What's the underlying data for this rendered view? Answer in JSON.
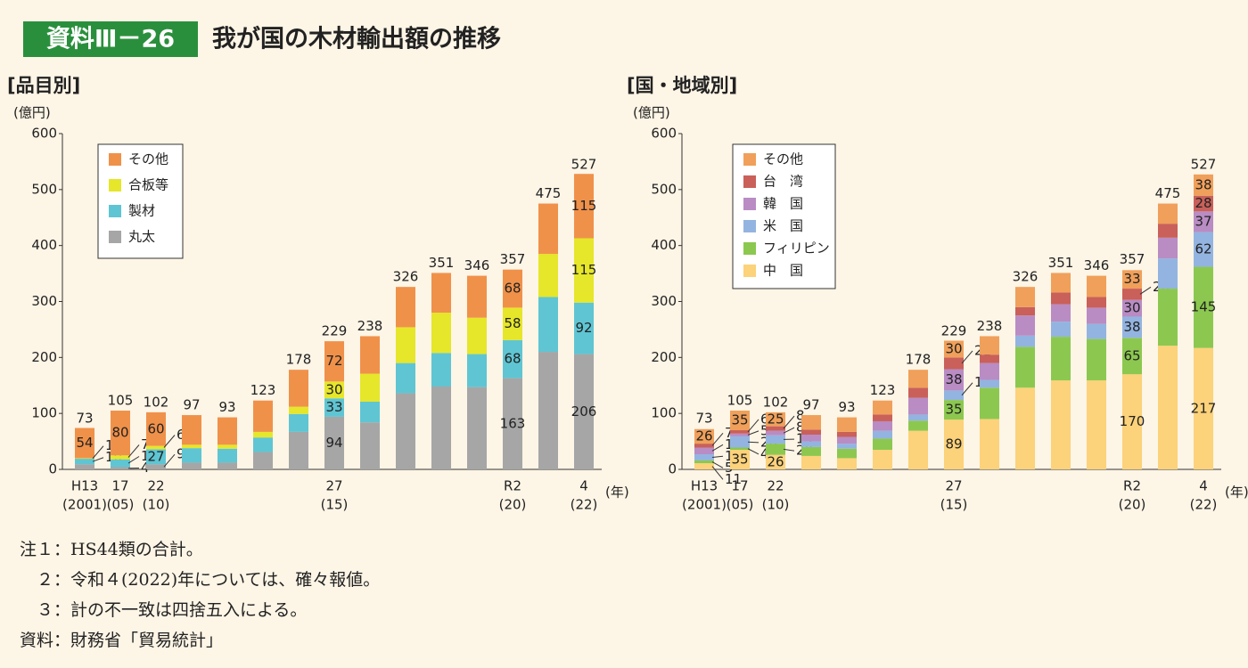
{
  "header": {
    "badge": "資料Ⅲ－26",
    "title": "我が国の木材輸出額の推移"
  },
  "chart_data": [
    {
      "type": "bar",
      "stacked": true,
      "title": "[品目別]",
      "y_label": "(億円)",
      "x_label": "(年)",
      "categories": [
        "H13",
        "17",
        "22",
        null,
        null,
        null,
        null,
        "27",
        null,
        null,
        null,
        null,
        "R2",
        null,
        "4"
      ],
      "category_sublabels": [
        "(2001)",
        "(05)",
        "(10)",
        null,
        null,
        null,
        null,
        "(15)",
        null,
        null,
        null,
        null,
        "(20)",
        null,
        "(22)"
      ],
      "ylim": [
        0,
        600
      ],
      "yticks": [
        0,
        100,
        200,
        300,
        400,
        500,
        600
      ],
      "legend": "upper left",
      "series": [
        {
          "name": "丸太",
          "color": "#a6a6a6",
          "values": [
            9,
            4,
            9,
            12,
            12,
            31,
            67,
            94,
            84,
            136,
            148,
            147,
            163,
            210,
            206
          ],
          "value_labels": [
            null,
            4,
            9,
            null,
            null,
            null,
            null,
            94,
            null,
            null,
            null,
            null,
            163,
            null,
            206
          ]
        },
        {
          "name": "製材",
          "color": "#5fc5d3",
          "values": [
            10,
            14,
            27,
            26,
            25,
            26,
            32,
            33,
            37,
            54,
            60,
            59,
            68,
            98,
            92
          ],
          "value_labels": [
            10,
            14,
            27,
            null,
            null,
            null,
            null,
            33,
            null,
            null,
            null,
            null,
            68,
            null,
            92
          ]
        },
        {
          "name": "合板等",
          "color": "#e6e62a",
          "values": [
            1,
            7,
            6,
            6,
            7,
            10,
            13,
            30,
            50,
            64,
            72,
            65,
            58,
            77,
            115
          ],
          "value_labels": [
            1,
            7,
            6,
            null,
            null,
            null,
            null,
            30,
            null,
            null,
            null,
            null,
            58,
            null,
            115
          ]
        },
        {
          "name": "その他",
          "color": "#f0914a",
          "values": [
            54,
            80,
            60,
            53,
            49,
            56,
            66,
            72,
            67,
            72,
            71,
            75,
            68,
            90,
            115
          ],
          "value_labels": [
            54,
            80,
            60,
            null,
            null,
            null,
            null,
            72,
            null,
            null,
            null,
            null,
            68,
            null,
            115
          ]
        }
      ],
      "totals": [
        73,
        105,
        102,
        97,
        93,
        123,
        178,
        229,
        238,
        326,
        351,
        346,
        357,
        475,
        527
      ]
    },
    {
      "type": "bar",
      "stacked": true,
      "title": "[国・地域別]",
      "y_label": "(億円)",
      "x_label": "(年)",
      "categories": [
        "H13",
        "17",
        "22",
        null,
        null,
        null,
        null,
        "27",
        null,
        null,
        null,
        null,
        "R2",
        null,
        "4"
      ],
      "category_sublabels": [
        "(2001)",
        "(05)",
        "(10)",
        null,
        null,
        null,
        null,
        "(15)",
        null,
        null,
        null,
        null,
        "(20)",
        null,
        "(22)"
      ],
      "ylim": [
        0,
        600
      ],
      "yticks": [
        0,
        100,
        200,
        300,
        400,
        500,
        600
      ],
      "legend": "upper left",
      "series": [
        {
          "name": "中　国",
          "color": "#fcd27a",
          "values": [
            11,
            35,
            26,
            24,
            20,
            35,
            69,
            89,
            90,
            146,
            159,
            159,
            170,
            221,
            217
          ],
          "value_labels": [
            11,
            35,
            26,
            null,
            null,
            null,
            null,
            89,
            null,
            null,
            null,
            null,
            170,
            null,
            217
          ]
        },
        {
          "name": "フィリピン",
          "color": "#8cc850",
          "values": [
            5,
            4,
            20,
            16,
            17,
            20,
            18,
            35,
            56,
            73,
            78,
            74,
            65,
            102,
            145
          ],
          "value_labels": [
            5,
            4,
            20,
            null,
            null,
            null,
            null,
            35,
            null,
            null,
            null,
            null,
            65,
            null,
            145
          ]
        },
        {
          "name": "米　国",
          "color": "#93b4e0",
          "values": [
            11,
            20,
            15,
            10,
            9,
            14,
            11,
            17,
            14,
            20,
            27,
            27,
            38,
            54,
            62
          ],
          "value_labels": [
            11,
            20,
            15,
            null,
            null,
            null,
            null,
            17,
            null,
            null,
            null,
            null,
            38,
            null,
            62
          ]
        },
        {
          "name": "韓　国",
          "color": "#b98cc4",
          "values": [
            12,
            5,
            8,
            12,
            12,
            17,
            30,
            38,
            30,
            36,
            31,
            29,
            30,
            37,
            37
          ],
          "value_labels": [
            12,
            5,
            8,
            null,
            null,
            null,
            null,
            38,
            null,
            null,
            null,
            null,
            30,
            null,
            37
          ]
        },
        {
          "name": "台　湾",
          "color": "#c9605a",
          "values": [
            7,
            6,
            8,
            9,
            9,
            12,
            18,
            21,
            15,
            15,
            21,
            19,
            20,
            25,
            28
          ],
          "value_labels": [
            7,
            6,
            8,
            null,
            null,
            null,
            null,
            21,
            null,
            null,
            null,
            null,
            20,
            null,
            28
          ]
        },
        {
          "name": "その他",
          "color": "#f0a05a",
          "values": [
            26,
            35,
            25,
            26,
            26,
            25,
            32,
            30,
            33,
            36,
            35,
            38,
            33,
            36,
            38
          ],
          "value_labels": [
            26,
            35,
            25,
            null,
            null,
            null,
            null,
            30,
            null,
            null,
            null,
            null,
            33,
            null,
            38
          ]
        }
      ],
      "totals": [
        73,
        105,
        102,
        97,
        93,
        123,
        178,
        229,
        238,
        326,
        351,
        346,
        357,
        475,
        527
      ]
    }
  ],
  "notes": [
    "注１：HS44類の合計。",
    "　２：令和４(2022)年については、確々報値。",
    "　３：計の不一致は四捨五入による。",
    "資料：財務省「貿易統計」"
  ]
}
